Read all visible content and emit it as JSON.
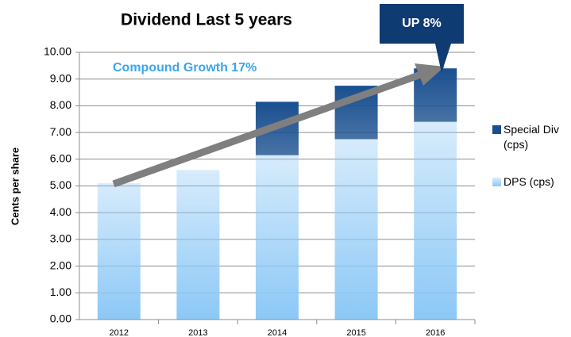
{
  "chart_data": {
    "type": "stacked_bar",
    "title": "Dividend Last 5 years",
    "y_label": "Cents per share",
    "annotations": [
      "Compound Growth 17%",
      "UP 8%"
    ],
    "categories": [
      "2012",
      "2013",
      "2014",
      "2015",
      "2016"
    ],
    "series": [
      {
        "name": "DPS (cps)",
        "color": "#8cc8f6",
        "values": [
          5.1,
          5.6,
          6.15,
          6.75,
          7.4
        ]
      },
      {
        "name": "Special Div (cps)",
        "color": "#1a4f8f",
        "values": [
          null,
          null,
          2.0,
          2.0,
          2.0
        ]
      }
    ],
    "ylim": [
      0,
      10
    ],
    "yticks": [
      {
        "value": 0,
        "label": "0.00"
      },
      {
        "value": 1,
        "label": "1.00"
      },
      {
        "value": 2,
        "label": "2.00"
      },
      {
        "value": 3,
        "label": "3.00"
      },
      {
        "value": 4,
        "label": "4.00"
      },
      {
        "value": 5,
        "label": "5.00"
      },
      {
        "value": 6,
        "label": "6.00"
      },
      {
        "value": 7,
        "label": "7.00"
      },
      {
        "value": 8,
        "label": "8.00"
      },
      {
        "value": 9,
        "label": "9.00"
      },
      {
        "value": 10,
        "label": "10.00"
      }
    ],
    "grid": true
  }
}
